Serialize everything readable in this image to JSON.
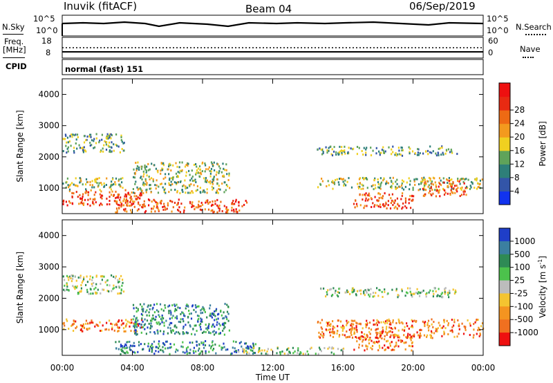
{
  "header": {
    "station": "Inuvik (fitACF)",
    "beam": "Beam 04",
    "date": "06/Sep/2019"
  },
  "strip": {
    "nsky_label": "N.Sky",
    "nsearch_label": "N.Search",
    "nsky_top_tick": "10^5",
    "nsky_bottom_tick": "10^0",
    "right_top_tick": "10^5",
    "right_bottom_tick": "10^0",
    "freq_label": "Freq.",
    "freq_unit": "[MHz]",
    "freq_top_tick": "18",
    "freq_bottom_tick": "8",
    "nave_label": "Nave",
    "nave_top_tick": "60",
    "nave_bottom_tick": "0",
    "cpid_label": "CPID",
    "cpid_value": "normal (fast) 151"
  },
  "chart_data": [
    {
      "type": "heatmap",
      "title": "",
      "xlabel": "Time UT",
      "ylabel": "Slant Range [km]",
      "x_ticks": [
        "00:00",
        "04:00",
        "08:00",
        "12:00",
        "16:00",
        "20:00",
        "00:00"
      ],
      "y_ticks": [
        "1000",
        "2000",
        "3000",
        "4000"
      ],
      "xlim_hours": [
        0,
        24
      ],
      "ylim_km": [
        180,
        4500
      ],
      "colorbar": {
        "label": "Power [dB]",
        "ticks": [
          "4",
          "8",
          "12",
          "16",
          "20",
          "24",
          "28"
        ],
        "range": [
          0,
          30
        ],
        "colors": [
          "#1133ee",
          "#3355a8",
          "#2e7f79",
          "#5fa35a",
          "#f0d020",
          "#f39a1e",
          "#ee6a14",
          "#e82a12",
          "#ee1010"
        ]
      },
      "scatter_bands": [
        {
          "t0": 0.0,
          "t1": 4.5,
          "r0": 400,
          "r1": 900,
          "level": "high"
        },
        {
          "t0": 3.0,
          "t1": 10.5,
          "r0": 180,
          "r1": 600,
          "level": "high"
        },
        {
          "t0": 0.0,
          "t1": 3.5,
          "r0": 900,
          "r1": 1300,
          "level": "mid"
        },
        {
          "t0": 4.0,
          "t1": 9.5,
          "r0": 800,
          "r1": 1800,
          "level": "mid"
        },
        {
          "t0": 0.0,
          "t1": 3.5,
          "r0": 2100,
          "r1": 2700,
          "level": "low"
        },
        {
          "t0": 14.5,
          "t1": 24.0,
          "r0": 900,
          "r1": 1300,
          "level": "mid"
        },
        {
          "t0": 14.5,
          "t1": 22.5,
          "r0": 2000,
          "r1": 2300,
          "level": "low"
        },
        {
          "t0": 16.5,
          "t1": 20.0,
          "r0": 300,
          "r1": 800,
          "level": "high"
        },
        {
          "t0": 20.5,
          "t1": 23.0,
          "r0": 700,
          "r1": 1200,
          "level": "high"
        }
      ]
    },
    {
      "type": "heatmap",
      "title": "",
      "xlabel": "Time UT",
      "ylabel": "Slant Range [km]",
      "x_ticks": [
        "00:00",
        "04:00",
        "08:00",
        "12:00",
        "16:00",
        "20:00",
        "00:00"
      ],
      "y_ticks": [
        "1000",
        "2000",
        "3000",
        "4000"
      ],
      "xlim_hours": [
        0,
        24
      ],
      "ylim_km": [
        180,
        4500
      ],
      "colorbar": {
        "label": "Velocity [m s^-1]",
        "ticks": [
          "1000",
          "500",
          "100",
          "25",
          "-25",
          "-100",
          "-500",
          "-1000"
        ],
        "range": [
          -1000,
          1000
        ],
        "colors": [
          "#1f3ec8",
          "#3b7fa0",
          "#2e8a55",
          "#4cc24c",
          "#bcbcbc",
          "#f4c430",
          "#f49420",
          "#f07020",
          "#ee1010"
        ]
      },
      "scatter_bands": [
        {
          "t0": 0.0,
          "t1": 4.5,
          "r0": 900,
          "r1": 1300,
          "level": "neg"
        },
        {
          "t0": 4.0,
          "t1": 9.5,
          "r0": 800,
          "r1": 1800,
          "level": "pos"
        },
        {
          "t0": 3.0,
          "t1": 11.0,
          "r0": 180,
          "r1": 600,
          "level": "pos"
        },
        {
          "t0": 0.0,
          "t1": 3.5,
          "r0": 2100,
          "r1": 2700,
          "level": "zero"
        },
        {
          "t0": 14.5,
          "t1": 22.5,
          "r0": 2000,
          "r1": 2300,
          "level": "zero"
        },
        {
          "t0": 14.5,
          "t1": 24.0,
          "r0": 700,
          "r1": 1300,
          "level": "neg"
        },
        {
          "t0": 16.5,
          "t1": 20.0,
          "r0": 300,
          "r1": 800,
          "level": "neg"
        },
        {
          "t0": 10.0,
          "t1": 16.0,
          "r0": 180,
          "r1": 400,
          "level": "zero"
        }
      ]
    }
  ]
}
